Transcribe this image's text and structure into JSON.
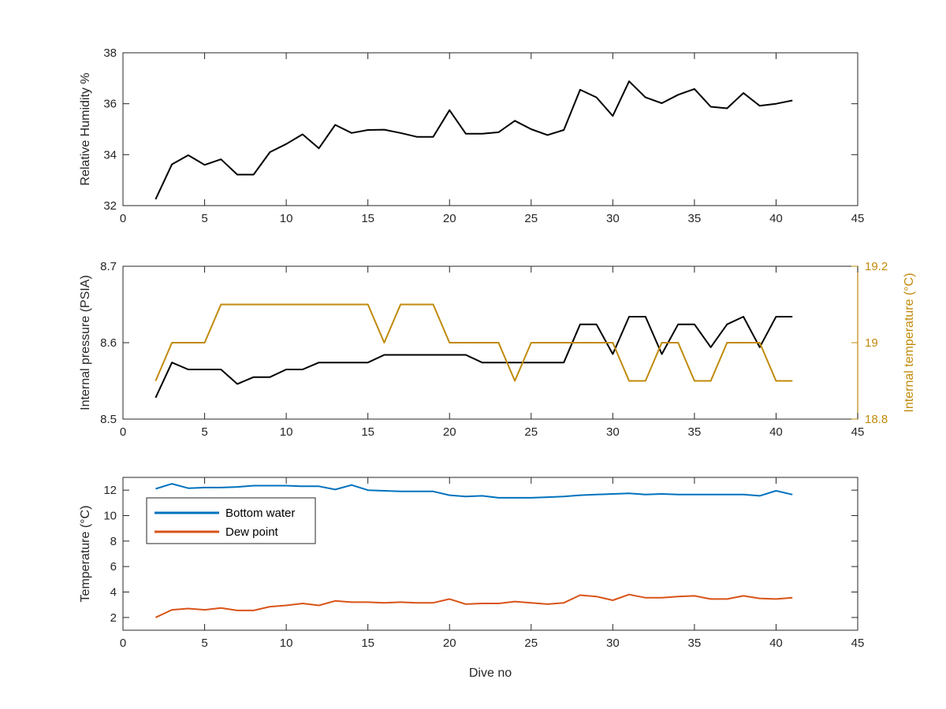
{
  "chart_data": [
    {
      "type": "line",
      "xlabel": "",
      "ylabel": "Relative Humidity %",
      "xlim": [
        0,
        45
      ],
      "ylim": [
        32,
        38
      ],
      "xticks": [
        "0",
        "5",
        "10",
        "15",
        "20",
        "25",
        "30",
        "35",
        "40",
        "45"
      ],
      "yticks": [
        "32",
        "34",
        "36",
        "38"
      ],
      "grid": false,
      "series": [
        {
          "color": "#000000",
          "x": [
            2,
            3,
            4,
            5,
            6,
            7,
            8,
            9,
            10,
            11,
            12,
            13,
            14,
            15,
            16,
            17,
            18,
            19,
            20,
            21,
            22,
            23,
            24,
            25,
            26,
            27,
            28,
            29,
            30,
            31,
            32,
            33,
            34,
            35,
            36,
            37,
            38,
            39,
            40,
            41
          ],
          "y": [
            32.25,
            33.62,
            33.98,
            33.6,
            33.82,
            33.22,
            33.22,
            34.1,
            34.42,
            34.8,
            34.25,
            35.17,
            34.85,
            34.97,
            34.98,
            34.85,
            34.7,
            34.7,
            35.75,
            34.82,
            34.82,
            34.88,
            35.33,
            35.0,
            34.77,
            34.97,
            36.55,
            36.25,
            35.52,
            36.88,
            36.25,
            36.02,
            36.35,
            36.58,
            35.88,
            35.82,
            36.42,
            35.92,
            36.0,
            36.13
          ]
        }
      ]
    },
    {
      "type": "line",
      "xlabel": "",
      "ylabel": "Internal pressure (PSIA)",
      "y2label": "Internal temperature (°C)",
      "xlim": [
        0,
        45
      ],
      "ylim": [
        8.5,
        8.7
      ],
      "y2lim": [
        18.8,
        19.2
      ],
      "xticks": [
        "0",
        "5",
        "10",
        "15",
        "20",
        "25",
        "30",
        "35",
        "40",
        "45"
      ],
      "yticks": [
        "8.5",
        "8.6",
        "8.7"
      ],
      "y2ticks": [
        "18.8",
        "19",
        "19.2"
      ],
      "y2color": "#c08a0a",
      "grid": false,
      "series": [
        {
          "color": "#000000",
          "axis": "left",
          "x": [
            2,
            3,
            4,
            5,
            6,
            7,
            8,
            9,
            10,
            11,
            12,
            13,
            14,
            15,
            16,
            17,
            18,
            19,
            20,
            21,
            22,
            23,
            24,
            25,
            26,
            27,
            28,
            29,
            30,
            31,
            32,
            33,
            34,
            35,
            36,
            37,
            38,
            39,
            40,
            41
          ],
          "y": [
            8.528,
            8.574,
            8.565,
            8.565,
            8.565,
            8.546,
            8.555,
            8.555,
            8.565,
            8.565,
            8.574,
            8.574,
            8.574,
            8.574,
            8.584,
            8.584,
            8.584,
            8.584,
            8.584,
            8.584,
            8.574,
            8.574,
            8.574,
            8.574,
            8.574,
            8.574,
            8.624,
            8.624,
            8.585,
            8.634,
            8.634,
            8.585,
            8.624,
            8.624,
            8.594,
            8.624,
            8.634,
            8.594,
            8.634,
            8.634
          ]
        },
        {
          "color": "#c08a0a",
          "axis": "right",
          "x": [
            2,
            3,
            4,
            5,
            6,
            7,
            8,
            9,
            10,
            11,
            12,
            13,
            14,
            15,
            16,
            17,
            18,
            19,
            20,
            21,
            22,
            23,
            24,
            25,
            26,
            27,
            28,
            29,
            30,
            31,
            32,
            33,
            34,
            35,
            36,
            37,
            38,
            39,
            40,
            41
          ],
          "y": [
            18.9,
            19.0,
            19.0,
            19.0,
            19.1,
            19.1,
            19.1,
            19.1,
            19.1,
            19.1,
            19.1,
            19.1,
            19.1,
            19.1,
            19.0,
            19.1,
            19.1,
            19.1,
            19.0,
            19.0,
            19.0,
            19.0,
            18.9,
            19.0,
            19.0,
            19.0,
            19.0,
            19.0,
            19.0,
            18.9,
            18.9,
            19.0,
            19.0,
            18.9,
            18.9,
            19.0,
            19.0,
            19.0,
            18.9,
            18.9
          ]
        }
      ]
    },
    {
      "type": "line",
      "xlabel": "Dive no",
      "ylabel": "Temperature (°C)",
      "xlim": [
        0,
        45
      ],
      "ylim": [
        1,
        13
      ],
      "xticks": [
        "0",
        "5",
        "10",
        "15",
        "20",
        "25",
        "30",
        "35",
        "40",
        "45"
      ],
      "yticks": [
        "2",
        "4",
        "6",
        "8",
        "10",
        "12"
      ],
      "grid": false,
      "legend": "top-left",
      "series": [
        {
          "name": "Bottom water",
          "color": "#0072bd",
          "x": [
            2,
            3,
            4,
            5,
            6,
            7,
            8,
            9,
            10,
            11,
            12,
            13,
            14,
            15,
            16,
            17,
            18,
            19,
            20,
            21,
            22,
            23,
            24,
            25,
            26,
            27,
            28,
            29,
            30,
            31,
            32,
            33,
            34,
            35,
            36,
            37,
            38,
            39,
            40,
            41
          ],
          "y": [
            12.1,
            12.5,
            12.15,
            12.2,
            12.2,
            12.25,
            12.35,
            12.35,
            12.35,
            12.3,
            12.3,
            12.05,
            12.4,
            12.0,
            11.95,
            11.9,
            11.9,
            11.9,
            11.6,
            11.5,
            11.55,
            11.4,
            11.4,
            11.4,
            11.45,
            11.5,
            11.6,
            11.65,
            11.7,
            11.75,
            11.65,
            11.7,
            11.65,
            11.65,
            11.65,
            11.65,
            11.65,
            11.55,
            11.95,
            11.65
          ]
        },
        {
          "name": "Dew point",
          "color": "#d95319",
          "x": [
            2,
            3,
            4,
            5,
            6,
            7,
            8,
            9,
            10,
            11,
            12,
            13,
            14,
            15,
            16,
            17,
            18,
            19,
            20,
            21,
            22,
            23,
            24,
            25,
            26,
            27,
            28,
            29,
            30,
            31,
            32,
            33,
            34,
            35,
            36,
            37,
            38,
            39,
            40,
            41
          ],
          "y": [
            2.0,
            2.6,
            2.7,
            2.6,
            2.75,
            2.55,
            2.55,
            2.85,
            2.95,
            3.1,
            2.95,
            3.3,
            3.2,
            3.2,
            3.15,
            3.2,
            3.15,
            3.15,
            3.45,
            3.05,
            3.1,
            3.1,
            3.25,
            3.15,
            3.05,
            3.15,
            3.75,
            3.65,
            3.35,
            3.8,
            3.55,
            3.55,
            3.65,
            3.7,
            3.45,
            3.45,
            3.7,
            3.5,
            3.45,
            3.55
          ]
        }
      ]
    }
  ]
}
